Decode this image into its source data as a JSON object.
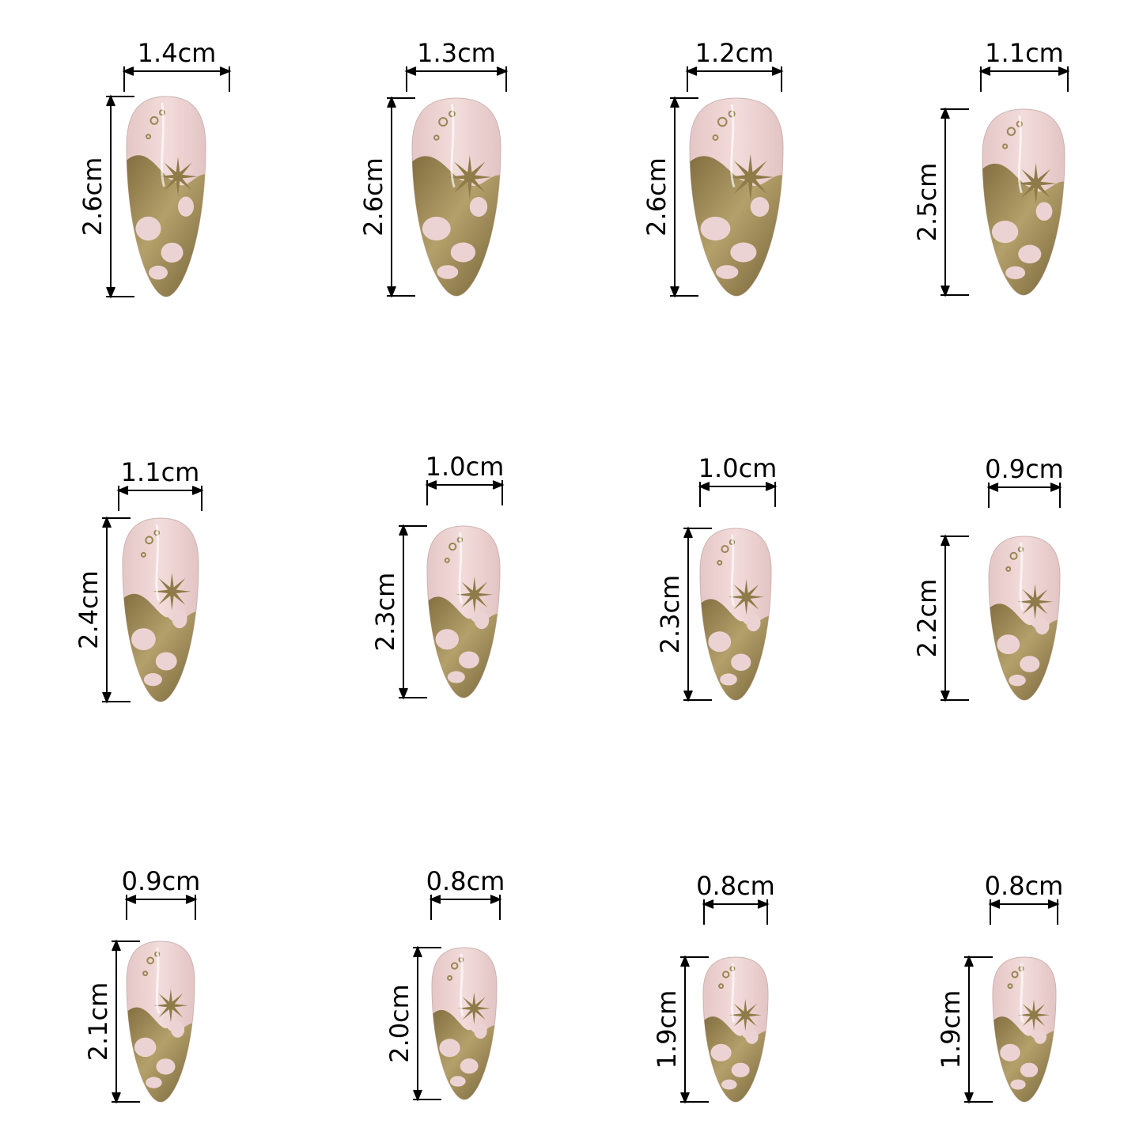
{
  "theme": {
    "background": "#ffffff",
    "nail_base": "#ecd3d3",
    "nail_gold": "#9a8755",
    "line": "#000000"
  },
  "nails": [
    {
      "width_label": "1.4cm",
      "length_label": "2.6cm"
    },
    {
      "width_label": "1.3cm",
      "length_label": "2.6cm"
    },
    {
      "width_label": "1.2cm",
      "length_label": "2.6cm"
    },
    {
      "width_label": "1.1cm",
      "length_label": "2.5cm"
    },
    {
      "width_label": "1.1cm",
      "length_label": "2.4cm"
    },
    {
      "width_label": "1.0cm",
      "length_label": "2.3cm"
    },
    {
      "width_label": "1.0cm",
      "length_label": "2.3cm"
    },
    {
      "width_label": "0.9cm",
      "length_label": "2.2cm"
    },
    {
      "width_label": "0.9cm",
      "length_label": "2.1cm"
    },
    {
      "width_label": "0.8cm",
      "length_label": "2.0cm"
    },
    {
      "width_label": "0.8cm",
      "length_label": "1.9cm"
    },
    {
      "width_label": "0.8cm",
      "length_label": "1.9cm"
    }
  ]
}
